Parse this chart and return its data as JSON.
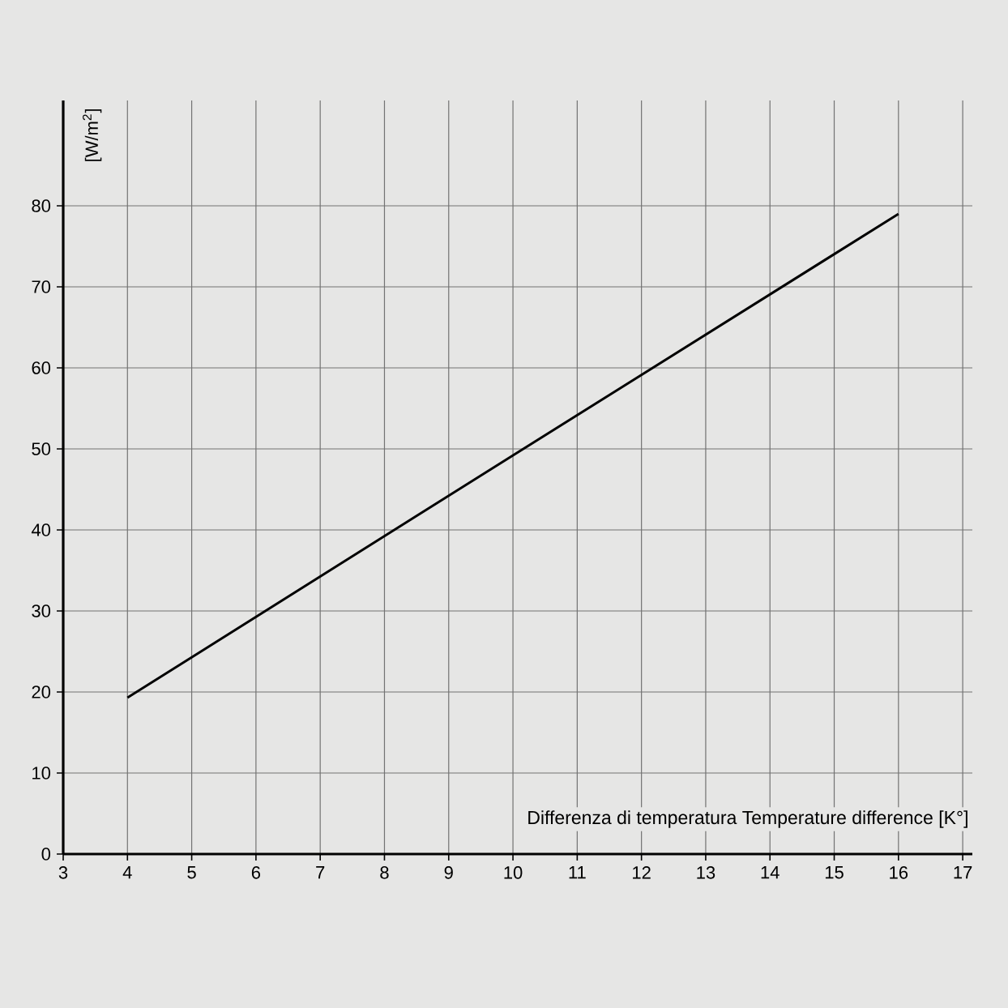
{
  "chart_data": {
    "type": "line",
    "xlabel": "Differenza di temperatura Temperature difference [K°]",
    "ylabel": "[W/m$^{2}$]",
    "x": [
      4,
      10,
      16
    ],
    "series": [
      {
        "color": "#000000",
        "values": [
          19.3,
          49.2,
          79.0
        ]
      }
    ],
    "xlim": [
      3,
      17.15
    ],
    "ylim": [
      0,
      93
    ],
    "xticks": [
      3,
      4,
      5,
      6,
      7,
      8,
      9,
      10,
      11,
      12,
      13,
      14,
      15,
      16,
      17
    ],
    "yticks": [
      0,
      10,
      20,
      30,
      40,
      50,
      60,
      70,
      80
    ],
    "grid": true,
    "marker": "none",
    "line_style": "solid"
  }
}
